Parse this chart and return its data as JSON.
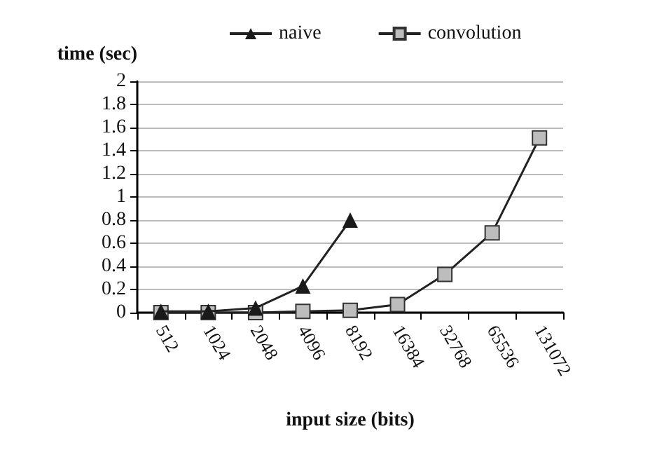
{
  "chart_data": {
    "type": "line",
    "ylabel": "time (sec)",
    "xlabel": "input size (bits)",
    "categories": [
      "512",
      "1024",
      "2048",
      "4096",
      "8192",
      "16384",
      "32768",
      "65536",
      "131072"
    ],
    "series": [
      {
        "name": "naive",
        "color": "#1a1a1a",
        "marker": "triangle",
        "values": [
          0.01,
          0.01,
          0.04,
          0.23,
          0.8,
          null,
          null,
          null,
          null
        ]
      },
      {
        "name": "convolution",
        "color": "#bdbdbd",
        "marker": "square",
        "values": [
          0,
          0,
          0,
          0.01,
          0.02,
          0.07,
          0.33,
          0.69,
          1.51
        ]
      }
    ],
    "ylim": [
      0,
      2
    ],
    "yticks": [
      0,
      0.2,
      0.4,
      0.6,
      0.8,
      1,
      1.2,
      1.4,
      1.6,
      1.8,
      2
    ],
    "grid": "y",
    "legend": "top",
    "line_style": "solid"
  }
}
